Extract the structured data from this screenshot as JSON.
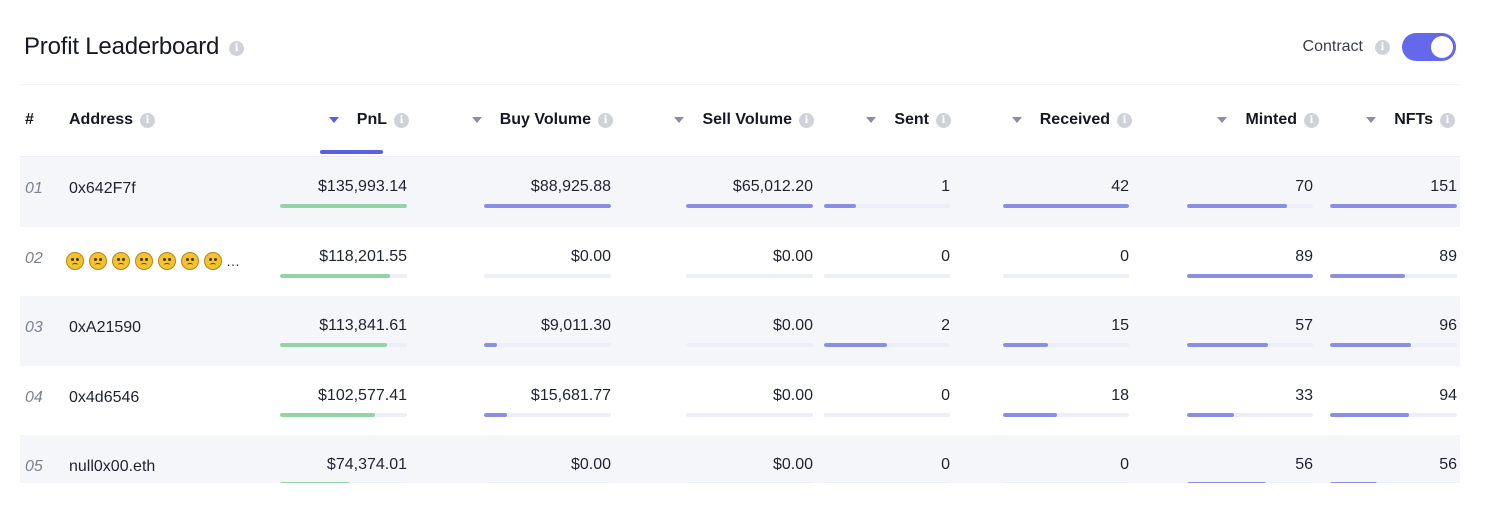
{
  "header": {
    "title": "Profit Leaderboard",
    "info_icon": "info-icon"
  },
  "toggle": {
    "label": "Contract",
    "on": true,
    "color": "#6468ea"
  },
  "columns": [
    {
      "key": "rank",
      "label": "#",
      "sortable": false
    },
    {
      "key": "address",
      "label": "Address",
      "sortable": false
    },
    {
      "key": "pnl",
      "label": "PnL",
      "sortable": true,
      "active": true
    },
    {
      "key": "buy",
      "label": "Buy Volume",
      "sortable": true
    },
    {
      "key": "sell",
      "label": "Sell Volume",
      "sortable": true
    },
    {
      "key": "sent",
      "label": "Sent",
      "sortable": true
    },
    {
      "key": "received",
      "label": "Received",
      "sortable": true
    },
    {
      "key": "minted",
      "label": "Minted",
      "sortable": true
    },
    {
      "key": "nfts",
      "label": "NFTs",
      "sortable": true
    }
  ],
  "colors": {
    "accent": "#5b5fe6",
    "bar": "#8b8fe3",
    "pnl_bar": "#93d3a6",
    "alt_row": "#f5f6fa"
  },
  "rows": [
    {
      "rank": "01",
      "address": "0x642F7f",
      "emoji_address": false,
      "pnl": "$135,993.14",
      "buy": "$88,925.88",
      "sell": "$65,012.20",
      "sent": "1",
      "received": "42",
      "minted": "70",
      "nfts": "151",
      "fill": {
        "pnl": 1.0,
        "buy": 1.0,
        "sell": 1.0,
        "sent": 0.25,
        "received": 1.0,
        "minted": 0.79,
        "nfts": 1.0
      }
    },
    {
      "rank": "02",
      "address": "🥴🥴🥴🥴🥴🥴🥴…",
      "emoji_address": true,
      "emoji_count": 7,
      "pnl": "$118,201.55",
      "buy": "$0.00",
      "sell": "$0.00",
      "sent": "0",
      "received": "0",
      "minted": "89",
      "nfts": "89",
      "fill": {
        "pnl": 0.87,
        "buy": 0.0,
        "sell": 0.0,
        "sent": 0.0,
        "received": 0.0,
        "minted": 1.0,
        "nfts": 0.59
      }
    },
    {
      "rank": "03",
      "address": "0xA21590",
      "emoji_address": false,
      "pnl": "$113,841.61",
      "buy": "$9,011.30",
      "sell": "$0.00",
      "sent": "2",
      "received": "15",
      "minted": "57",
      "nfts": "96",
      "fill": {
        "pnl": 0.84,
        "buy": 0.1,
        "sell": 0.0,
        "sent": 0.5,
        "received": 0.36,
        "minted": 0.64,
        "nfts": 0.64
      }
    },
    {
      "rank": "04",
      "address": "0x4d6546",
      "emoji_address": false,
      "pnl": "$102,577.41",
      "buy": "$15,681.77",
      "sell": "$0.00",
      "sent": "0",
      "received": "18",
      "minted": "33",
      "nfts": "94",
      "fill": {
        "pnl": 0.75,
        "buy": 0.18,
        "sell": 0.0,
        "sent": 0.0,
        "received": 0.43,
        "minted": 0.37,
        "nfts": 0.62
      }
    },
    {
      "rank": "05",
      "address": "null0x00.eth",
      "emoji_address": false,
      "pnl": "$74,374.01",
      "buy": "$0.00",
      "sell": "$0.00",
      "sent": "0",
      "received": "0",
      "minted": "56",
      "nfts": "56",
      "fill": {
        "pnl": 0.55,
        "buy": 0.0,
        "sell": 0.0,
        "sent": 0.0,
        "received": 0.0,
        "minted": 0.63,
        "nfts": 0.37
      }
    }
  ]
}
